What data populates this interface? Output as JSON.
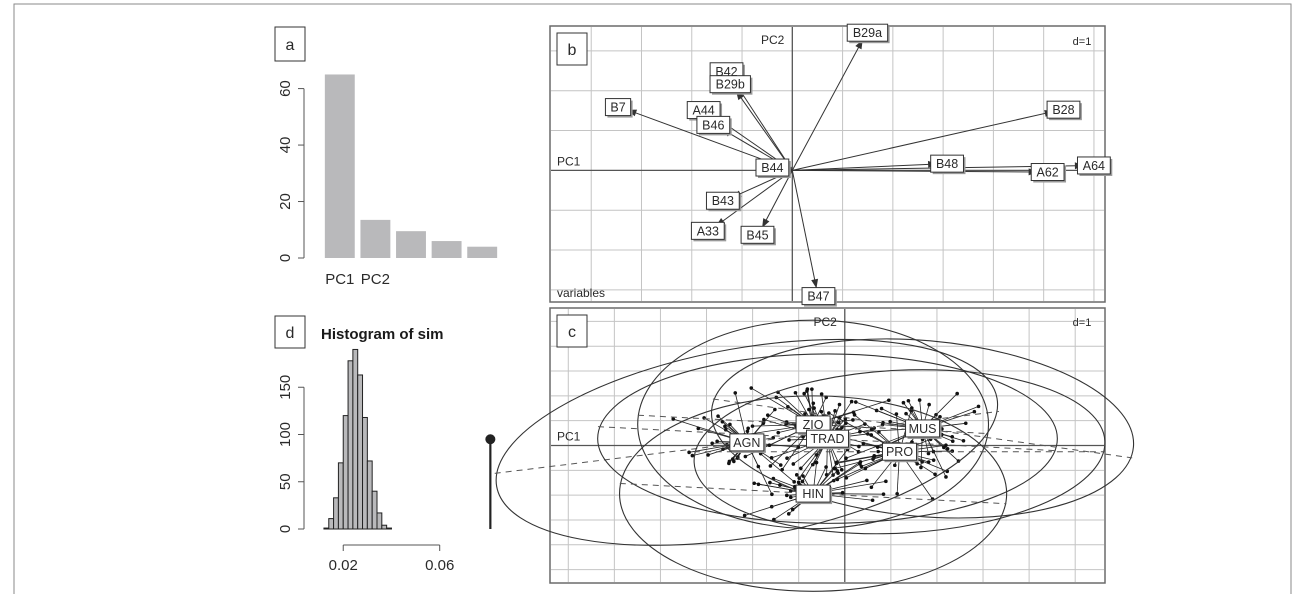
{
  "colors": {
    "bar": "#b9b9bb",
    "grid": "#c4c4c4",
    "axis": "#555555",
    "ink": "#2a2a2a",
    "frame": "#8a8a8a"
  },
  "chart_data": [
    {
      "panel": "a",
      "type": "bar",
      "categories": [
        "PC1",
        "PC2",
        "",
        "",
        ""
      ],
      "values": [
        65,
        13.5,
        9.5,
        6,
        4
      ],
      "yticks": [
        0,
        20,
        40,
        60
      ],
      "ylim": [
        0,
        68
      ]
    },
    {
      "panel": "b",
      "type": "scatter",
      "subtype": "correlation-circle",
      "scale_label": "d=1",
      "xaxis_label": "PC1",
      "yaxis_label": "PC2",
      "corner_label": "variables",
      "xlim": [
        -1.2,
        1.55
      ],
      "ylim": [
        -0.82,
        0.9
      ],
      "grid_step": 0.25,
      "points": [
        {
          "label": "B29a",
          "x": 0.35,
          "y": 0.82
        },
        {
          "label": "B42",
          "x": -0.3,
          "y": 0.58
        },
        {
          "label": "B29b",
          "x": -0.28,
          "y": 0.5
        },
        {
          "label": "B7",
          "x": -0.82,
          "y": 0.38
        },
        {
          "label": "A44",
          "x": -0.4,
          "y": 0.35
        },
        {
          "label": "B46",
          "x": -0.35,
          "y": 0.26
        },
        {
          "label": "B28",
          "x": 1.3,
          "y": 0.37
        },
        {
          "label": "B44",
          "x": -0.05,
          "y": 0.01
        },
        {
          "label": "B48",
          "x": 0.72,
          "y": 0.04
        },
        {
          "label": "A64",
          "x": 1.45,
          "y": 0.03
        },
        {
          "label": "A62",
          "x": 1.22,
          "y": -0.01
        },
        {
          "label": "B43",
          "x": -0.3,
          "y": -0.17
        },
        {
          "label": "A33",
          "x": -0.38,
          "y": -0.35
        },
        {
          "label": "B45",
          "x": -0.15,
          "y": -0.36
        },
        {
          "label": "B47",
          "x": 0.12,
          "y": -0.74
        }
      ]
    },
    {
      "panel": "c",
      "type": "scatter",
      "subtype": "class-ellipses",
      "scale_label": "d=1",
      "xaxis_label": "PC1",
      "yaxis_label": "PC2",
      "xlim": [
        -5.1,
        4.5
      ],
      "ylim": [
        -4.4,
        4.4
      ],
      "grid_step": 0.8,
      "classes": [
        {
          "label": "AGN",
          "x": -1.7,
          "y": 0.1
        },
        {
          "label": "ZIO",
          "x": -0.55,
          "y": 0.68
        },
        {
          "label": "TRAD",
          "x": -0.3,
          "y": 0.22
        },
        {
          "label": "MUS",
          "x": 1.35,
          "y": 0.55
        },
        {
          "label": "PRO",
          "x": 0.95,
          "y": -0.2
        },
        {
          "label": "HIN",
          "x": -0.55,
          "y": -1.55
        }
      ]
    },
    {
      "panel": "d",
      "type": "bar",
      "subtype": "histogram",
      "title": "Histogram of sim",
      "bins": [
        [
          0.012,
          0.014,
          1
        ],
        [
          0.014,
          0.016,
          11
        ],
        [
          0.016,
          0.018,
          33
        ],
        [
          0.018,
          0.02,
          70
        ],
        [
          0.02,
          0.022,
          120
        ],
        [
          0.022,
          0.024,
          178
        ],
        [
          0.024,
          0.026,
          190
        ],
        [
          0.026,
          0.028,
          163
        ],
        [
          0.028,
          0.03,
          118
        ],
        [
          0.03,
          0.032,
          72
        ],
        [
          0.032,
          0.034,
          40
        ],
        [
          0.034,
          0.036,
          17
        ],
        [
          0.036,
          0.038,
          4
        ],
        [
          0.038,
          0.04,
          1
        ]
      ],
      "observed": {
        "x": 0.081,
        "y": 95
      },
      "xticks": [
        0.02,
        0.06
      ],
      "yticks": [
        0,
        50,
        100,
        150
      ],
      "xlim": [
        0.0,
        0.085
      ],
      "ylim": [
        0,
        200
      ]
    }
  ],
  "panel_labels": {
    "a": "a",
    "b": "b",
    "c": "c",
    "d": "d"
  }
}
